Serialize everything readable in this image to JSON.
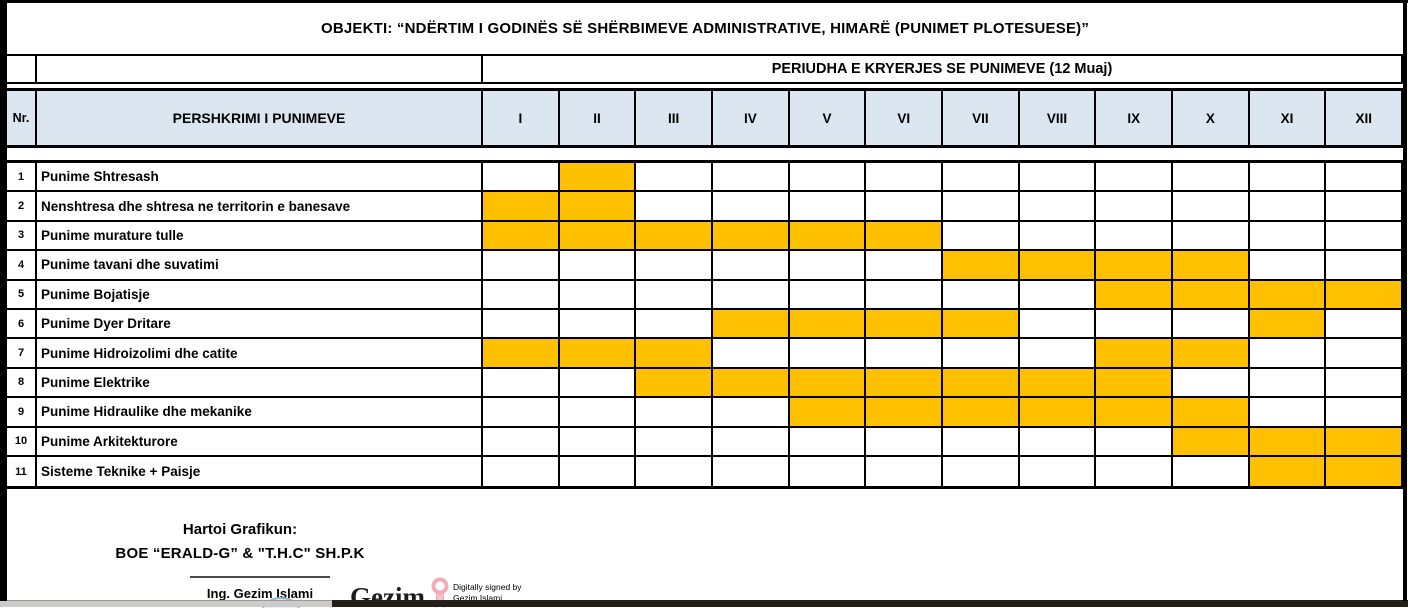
{
  "title": "OBJEKTI: “NDËRTIM I GODINËS SË SHËRBIMEVE ADMINISTRATIVE, HIMARË (PUNIMET PLOTESUESE)”",
  "period_header": "PERIUDHA E KRYERJES SE PUNIMEVE (12 Muaj)",
  "table": {
    "nr_header": "Nr.",
    "desc_header": "PERSHKRIMI I PUNIMEVE",
    "months": [
      "I",
      "II",
      "III",
      "IV",
      "V",
      "VI",
      "VII",
      "VIII",
      "IX",
      "X",
      "XI",
      "XII"
    ],
    "rows": [
      {
        "nr": "1",
        "label": "Punime Shtresash",
        "filled": [
          2
        ]
      },
      {
        "nr": "2",
        "label": "Nenshtresa dhe shtresa ne territorin e banesave",
        "filled": [
          1,
          2
        ]
      },
      {
        "nr": "3",
        "label": "Punime murature tulle",
        "filled": [
          1,
          2,
          3,
          4,
          5,
          6
        ]
      },
      {
        "nr": "4",
        "label": "Punime tavani dhe suvatimi",
        "filled": [
          7,
          8,
          9,
          10
        ]
      },
      {
        "nr": "5",
        "label": "Punime Bojatisje",
        "filled": [
          9,
          10,
          11,
          12
        ]
      },
      {
        "nr": "6",
        "label": "Punime Dyer Dritare",
        "filled": [
          4,
          5,
          6,
          7,
          11
        ]
      },
      {
        "nr": "7",
        "label": "Punime Hidroizolimi dhe catite",
        "filled": [
          1,
          2,
          3,
          9,
          10
        ]
      },
      {
        "nr": "8",
        "label": "Punime Elektrike",
        "filled": [
          3,
          4,
          5,
          6,
          7,
          8,
          9
        ]
      },
      {
        "nr": "9",
        "label": "Punime Hidraulike dhe mekanike",
        "filled": [
          5,
          6,
          7,
          8,
          9,
          10
        ]
      },
      {
        "nr": "10",
        "label": "Punime Arkitekturore",
        "filled": [
          10,
          11,
          12
        ]
      },
      {
        "nr": "11",
        "label": "Sisteme Teknike + Paisje",
        "filled": [
          11,
          12
        ]
      }
    ]
  },
  "chart_data": {
    "type": "table",
    "title": "PERIUDHA E KRYERJES SE PUNIMEVE (12 Muaj)",
    "categories": [
      "I",
      "II",
      "III",
      "IV",
      "V",
      "VI",
      "VII",
      "VIII",
      "IX",
      "X",
      "XI",
      "XII"
    ],
    "series": [
      {
        "name": "Punime Shtresash",
        "active_months": [
          2
        ]
      },
      {
        "name": "Nenshtresa dhe shtresa ne territorin e banesave",
        "active_months": [
          1,
          2
        ]
      },
      {
        "name": "Punime murature tulle",
        "active_months": [
          1,
          2,
          3,
          4,
          5,
          6
        ]
      },
      {
        "name": "Punime tavani dhe suvatimi",
        "active_months": [
          7,
          8,
          9,
          10
        ]
      },
      {
        "name": "Punime Bojatisje",
        "active_months": [
          9,
          10,
          11,
          12
        ]
      },
      {
        "name": "Punime Dyer Dritare",
        "active_months": [
          4,
          5,
          6,
          7,
          11
        ]
      },
      {
        "name": "Punime Hidroizolimi dhe catite",
        "active_months": [
          1,
          2,
          3,
          9,
          10
        ]
      },
      {
        "name": "Punime Elektrike",
        "active_months": [
          3,
          4,
          5,
          6,
          7,
          8,
          9
        ]
      },
      {
        "name": "Punime Hidraulike dhe mekanike",
        "active_months": [
          5,
          6,
          7,
          8,
          9,
          10
        ]
      },
      {
        "name": "Punime Arkitekturore",
        "active_months": [
          10,
          11,
          12
        ]
      },
      {
        "name": "Sisteme Teknike + Paisje",
        "active_months": [
          11,
          12
        ]
      }
    ]
  },
  "footer": {
    "prepared_label": "Hartoi Grafikun:",
    "company": "BOE “ERALD-G” & \"T.H.C\" SH.P.K",
    "signer": "Ing. Gezim Islami",
    "signature_name": "Gezim",
    "digital_line1": "Digitally signed by",
    "digital_line2": "Gezim Islami"
  },
  "colors": {
    "bar_fill": "#FFC000",
    "header_bg": "#DCE6F1"
  }
}
